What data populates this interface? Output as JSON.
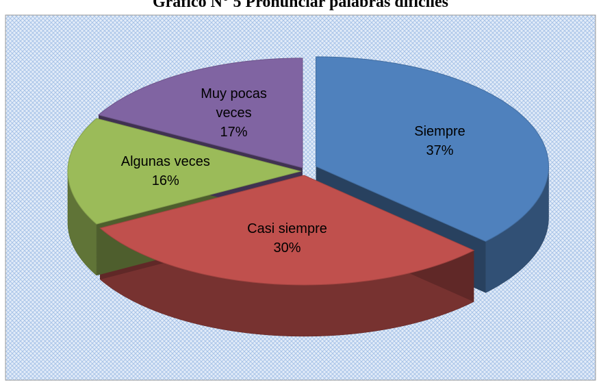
{
  "chart_data": {
    "type": "pie3d",
    "title": "Gráfico N° 5 Pronunciar palabras difíciles",
    "categories": [
      "Siempre",
      "Casi siempre",
      "Algunas veces",
      "Muy pocas veces"
    ],
    "values": [
      37,
      30,
      16,
      17
    ],
    "value_labels": [
      "37%",
      "30%",
      "16%",
      "17%"
    ],
    "colors": [
      "#4f81bd",
      "#c0504d",
      "#9bbb59",
      "#8064a2"
    ]
  }
}
